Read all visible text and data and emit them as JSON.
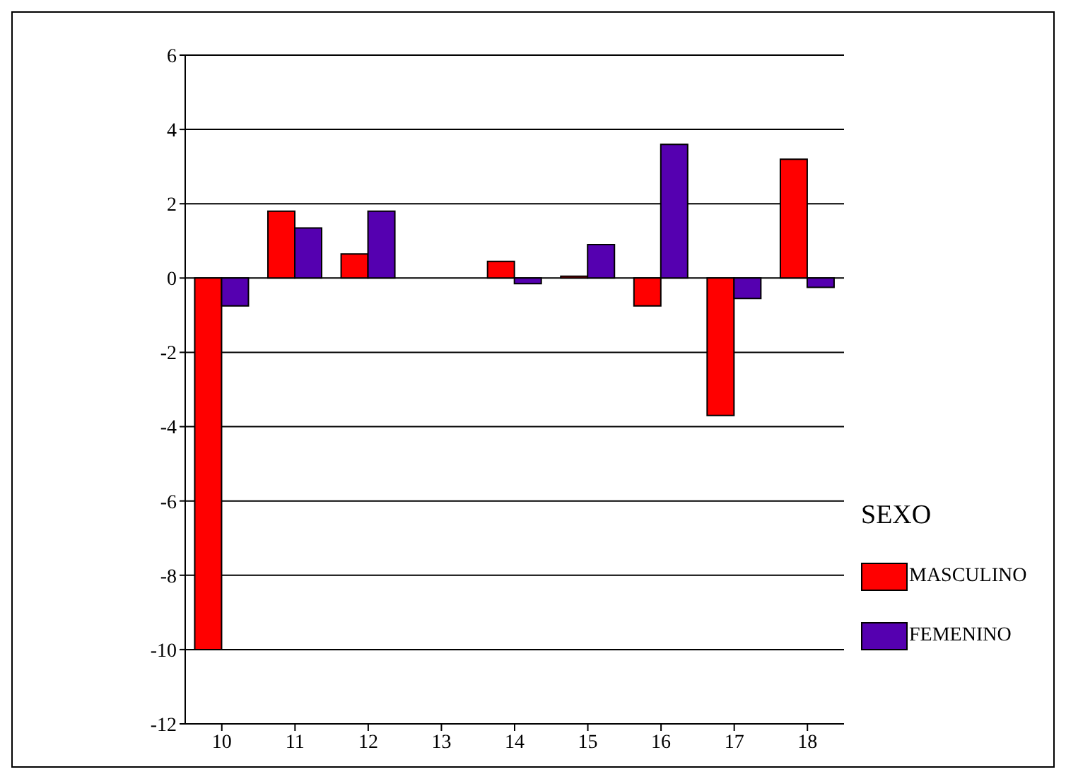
{
  "chart_data": {
    "type": "bar",
    "categories": [
      "10",
      "11",
      "12",
      "13",
      "14",
      "15",
      "16",
      "17",
      "18"
    ],
    "series": [
      {
        "name": "MASCULINO",
        "color": "#ff0000",
        "values": [
          -10,
          1.8,
          0.65,
          0,
          0.45,
          0.05,
          -0.75,
          -3.7,
          3.2
        ]
      },
      {
        "name": "FEMENINO",
        "color": "#5500b0",
        "values": [
          -0.75,
          1.35,
          1.8,
          0,
          -0.15,
          0.9,
          3.6,
          -0.55,
          -0.25
        ]
      }
    ],
    "legend_title": "SEXO",
    "legend": "bottom right",
    "ylim": [
      -12,
      6
    ],
    "yticks": [
      -12,
      -10,
      -8,
      -6,
      -4,
      -2,
      0,
      2,
      4,
      6
    ],
    "grid": "y"
  }
}
